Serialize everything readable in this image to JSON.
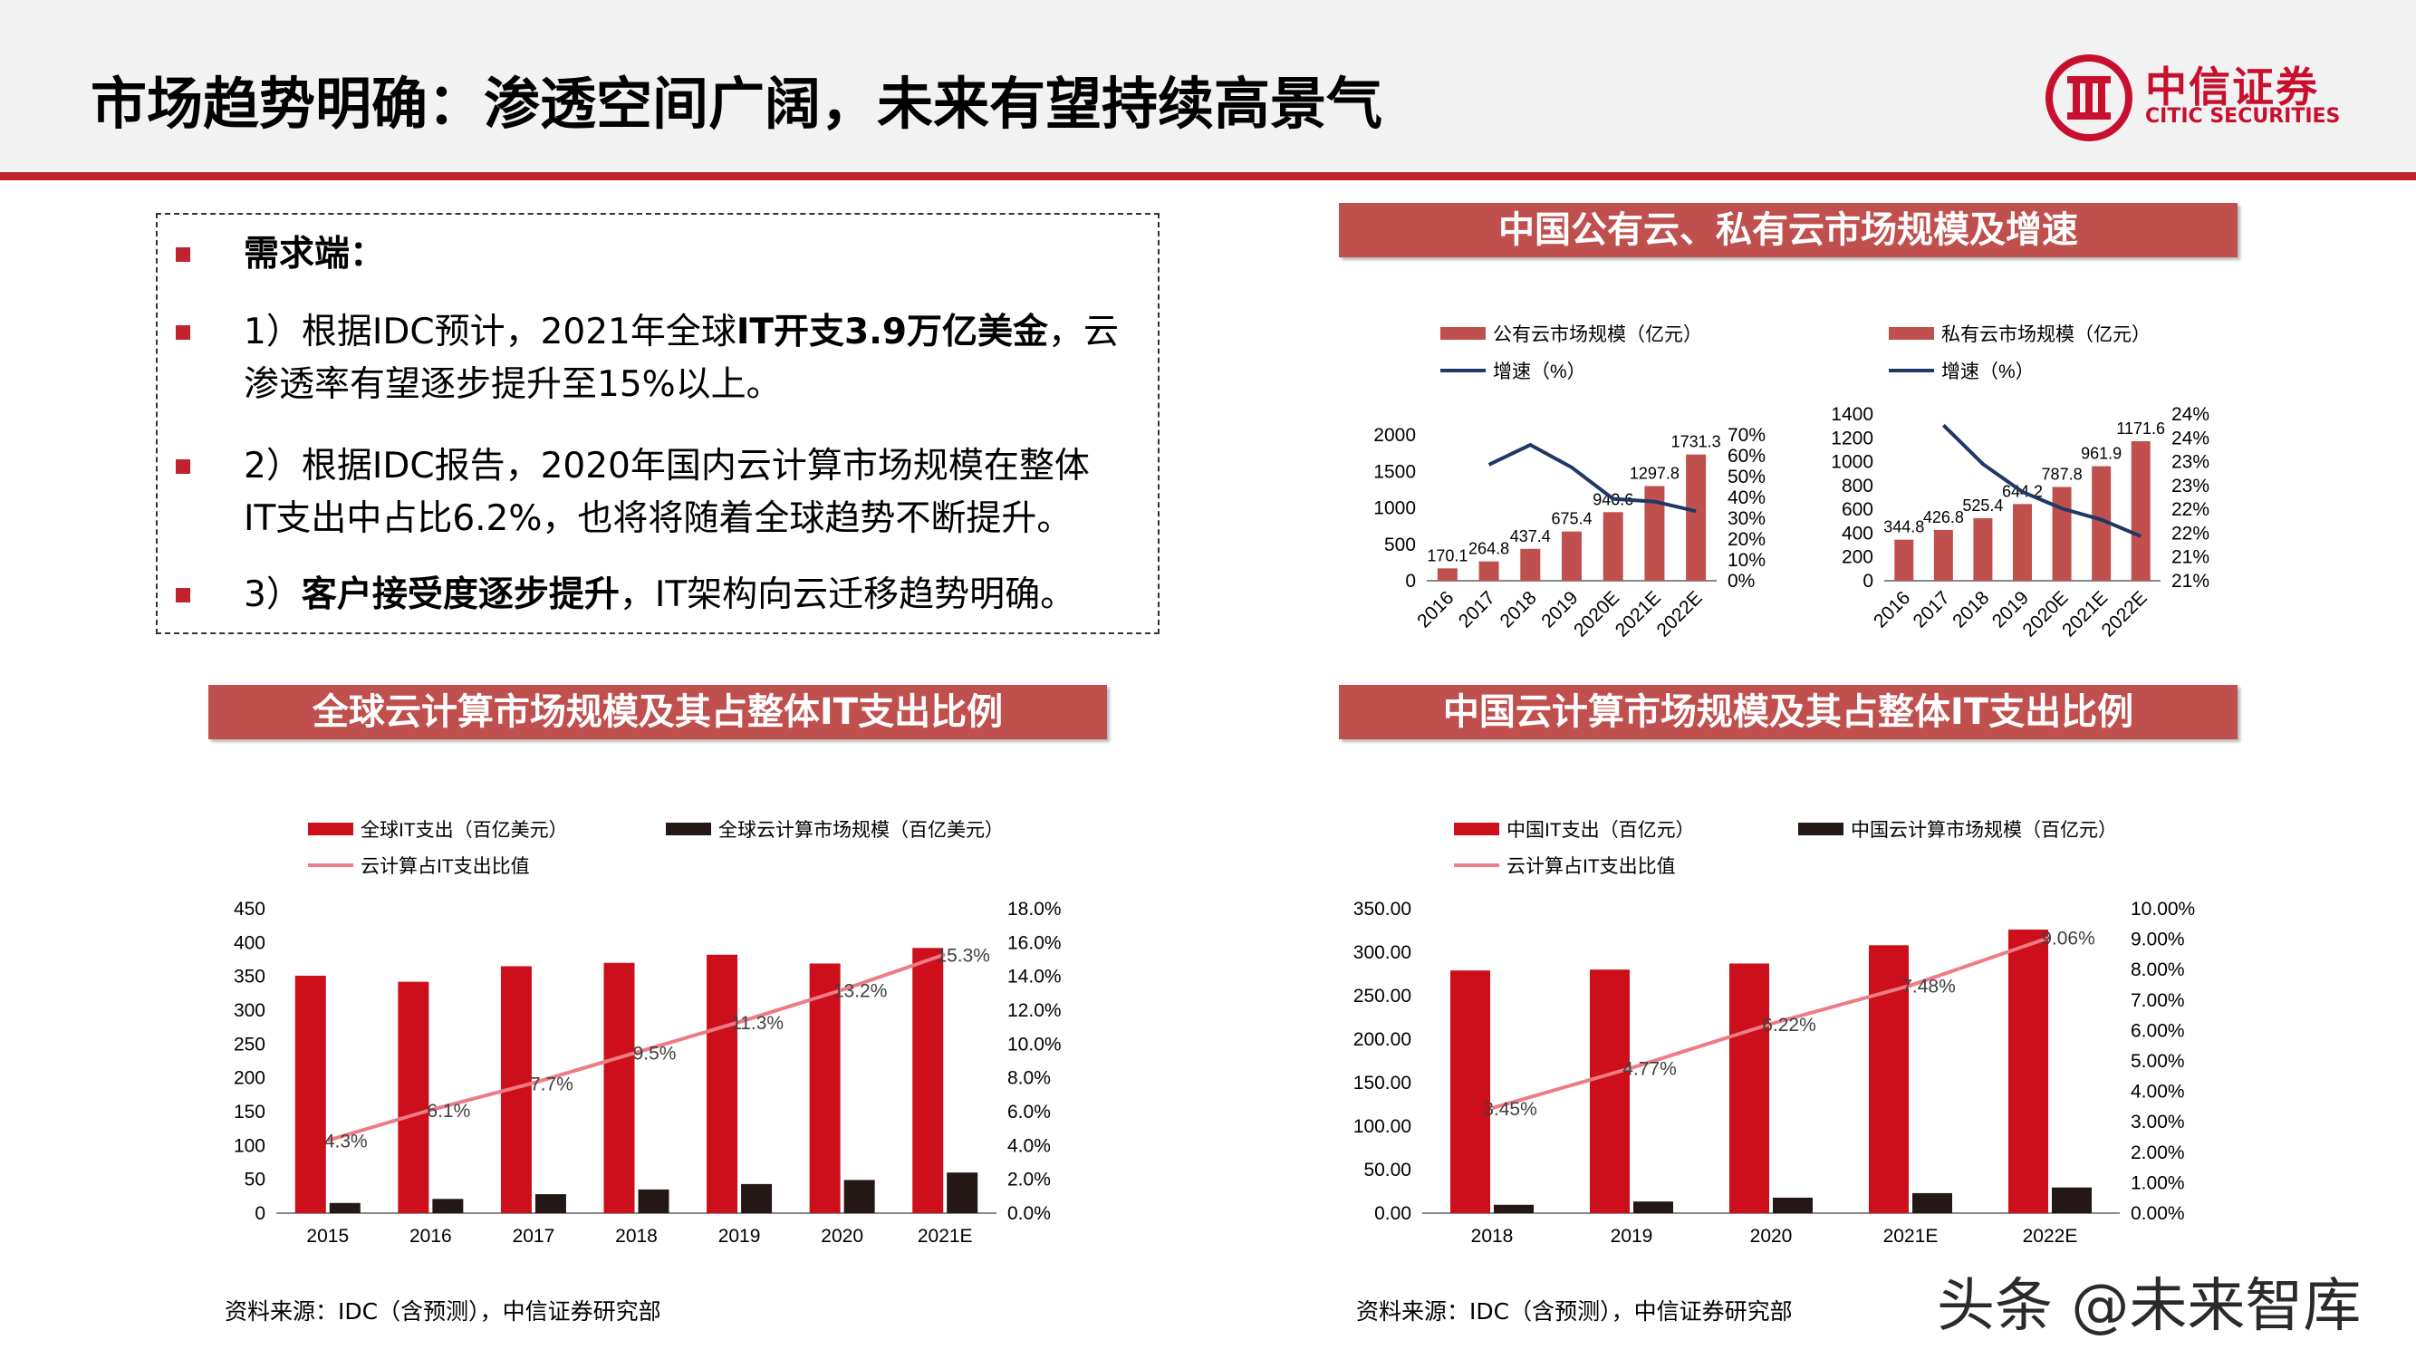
{
  "title": "市场趋势明确：渗透空间广阔，未来有望持续高景气",
  "logo": {
    "cn": "中信证券",
    "en": "CITIC SECURITIES"
  },
  "demand": {
    "heading": "需求端：",
    "items": [
      {
        "line1": [
          {
            "t": "1）根据IDC预计，2021年全球"
          },
          {
            "t": "IT开支3.9万亿美金",
            "b": true
          },
          {
            "t": "，云"
          }
        ],
        "line2": "渗透率有望逐步提升至15%以上。"
      },
      {
        "line1": [
          {
            "t": "2）根据IDC报告，2020年国内云计算市场规模在整体"
          }
        ],
        "line2": "IT支出中占比6.2%，也将将随着全球趋势不断提升。"
      },
      {
        "line1": [
          {
            "t": "3）"
          },
          {
            "t": "客户接受度逐步提升",
            "b": true
          },
          {
            "t": "，IT架构向云迁移趋势明确。"
          }
        ],
        "line2": ""
      }
    ]
  },
  "colors": {
    "brand_red": "#c0232d",
    "title_bar": "#c0504d",
    "bar_red": "#cc0f1a",
    "bar_light": "#c0504d",
    "bar_black": "#231815",
    "line_pink": "#ee7b85",
    "line_navy": "#1f3864"
  },
  "chart_data": [
    {
      "id": "public-cloud",
      "panel_title": "中国公有云、私有云市场规模及增速",
      "type": "bar",
      "categories": [
        "2016",
        "2017",
        "2018",
        "2019",
        "2020E",
        "2021E",
        "2022E"
      ],
      "series": [
        {
          "name": "公有云市场规模（亿元）",
          "type": "bar",
          "values": [
            170.1,
            264.8,
            437.4,
            675.4,
            940.6,
            1297.8,
            1731.3
          ],
          "labels": [
            "170.1",
            "264.8",
            "437.4",
            "675.4",
            "940.6",
            "1297.8",
            "1731.3"
          ]
        },
        {
          "name": "增速（%）",
          "type": "line",
          "axis": "right",
          "values": [
            null,
            55.7,
            65.2,
            54.4,
            39.3,
            38.0,
            33.4
          ]
        }
      ],
      "ylim": [
        0,
        2000
      ],
      "yticks": [
        "0",
        "500",
        "1000",
        "1500",
        "2000"
      ],
      "y2lim": [
        0,
        70
      ],
      "y2ticks": [
        "0%",
        "10%",
        "20%",
        "30%",
        "40%",
        "50%",
        "60%",
        "70%"
      ]
    },
    {
      "id": "private-cloud",
      "type": "bar",
      "categories": [
        "2016",
        "2017",
        "2018",
        "2019",
        "2020E",
        "2021E",
        "2022E"
      ],
      "series": [
        {
          "name": "私有云市场规模（亿元）",
          "type": "bar",
          "values": [
            344.8,
            426.8,
            525.4,
            644.2,
            787.8,
            961.9,
            1171.6
          ],
          "labels": [
            "344.8",
            "426.8",
            "525.4",
            "644.2",
            "787.8",
            "961.9",
            "1171.6"
          ]
        },
        {
          "name": "增速（%）",
          "type": "line",
          "axis": "right",
          "values": [
            null,
            23.8,
            23.1,
            22.6,
            22.3,
            22.1,
            21.8
          ]
        }
      ],
      "ylim": [
        0,
        1400
      ],
      "yticks": [
        "0",
        "200",
        "400",
        "600",
        "800",
        "1000",
        "1200",
        "1400"
      ],
      "y2lim": [
        21,
        24
      ],
      "y2ticks": [
        "21%",
        "21%",
        "22%",
        "22%",
        "23%",
        "23%",
        "24%",
        "24%"
      ]
    },
    {
      "id": "global-cloud",
      "panel_title": "全球云计算市场规模及其占整体IT支出比例",
      "type": "bar",
      "categories": [
        "2015",
        "2016",
        "2017",
        "2018",
        "2019",
        "2020",
        "2021E"
      ],
      "series": [
        {
          "name": "全球IT支出（百亿美元）",
          "type": "bar",
          "values": [
            351,
            342,
            365,
            370,
            382,
            369,
            392
          ]
        },
        {
          "name": "全球云计算市场规模（百亿美元）",
          "type": "bar",
          "values": [
            15,
            21,
            28,
            35,
            43,
            49,
            60
          ]
        },
        {
          "name": "云计算占IT支出比值",
          "type": "line",
          "axis": "right",
          "values": [
            4.3,
            6.1,
            7.7,
            9.5,
            11.3,
            13.2,
            15.3
          ],
          "labels": [
            "4.3%",
            "6.1%",
            "7.7%",
            "9.5%",
            "11.3%",
            "13.2%",
            "15.3%"
          ]
        }
      ],
      "ylim": [
        0,
        450
      ],
      "yticks": [
        "0",
        "50",
        "100",
        "150",
        "200",
        "250",
        "300",
        "350",
        "400",
        "450"
      ],
      "y2lim": [
        0,
        18
      ],
      "y2ticks": [
        "0.0%",
        "2.0%",
        "4.0%",
        "6.0%",
        "8.0%",
        "10.0%",
        "12.0%",
        "14.0%",
        "16.0%",
        "18.0%"
      ],
      "source": "资料来源：IDC（含预测），中信证券研究部"
    },
    {
      "id": "china-cloud",
      "panel_title": "中国云计算市场规模及其占整体IT支出比例",
      "type": "bar",
      "categories": [
        "2018",
        "2019",
        "2020",
        "2021E",
        "2022E"
      ],
      "series": [
        {
          "name": "中国IT支出（百亿元）",
          "type": "bar",
          "values": [
            279,
            280,
            287,
            308,
            326
          ]
        },
        {
          "name": "中国云计算市场规模（百亿元）",
          "type": "bar",
          "values": [
            9.6,
            13.4,
            17.8,
            23.0,
            29.5
          ]
        },
        {
          "name": "云计算占IT支出比值",
          "type": "line",
          "axis": "right",
          "values": [
            3.45,
            4.77,
            6.22,
            7.48,
            9.06
          ],
          "labels": [
            "3.45%",
            "4.77%",
            "6.22%",
            "7.48%",
            "9.06%"
          ]
        }
      ],
      "ylim": [
        0,
        350
      ],
      "yticks": [
        "0.00",
        "50.00",
        "100.00",
        "150.00",
        "200.00",
        "250.00",
        "300.00",
        "350.00"
      ],
      "y2lim": [
        0,
        10
      ],
      "y2ticks": [
        "0.00%",
        "1.00%",
        "2.00%",
        "3.00%",
        "4.00%",
        "5.00%",
        "6.00%",
        "7.00%",
        "8.00%",
        "9.00%",
        "10.00%"
      ],
      "source": "资料来源：IDC（含预测），中信证券研究部"
    }
  ],
  "watermark": "头条 @未来智库"
}
